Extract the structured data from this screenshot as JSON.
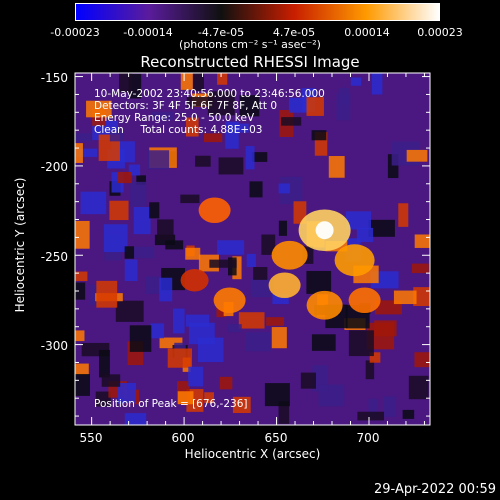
{
  "chart_data": {
    "type": "heatmap",
    "title": "Reconstructed RHESSI Image",
    "xlabel": "Heliocentric X (arcsec)",
    "ylabel": "Heliocentric Y (arcsec)",
    "xlim": [
      541,
      733
    ],
    "ylim": [
      -345,
      -148
    ],
    "x_ticks": [
      "550",
      "600",
      "650",
      "700"
    ],
    "y_ticks": [
      "-150",
      "-200",
      "-250",
      "-300"
    ],
    "colorbar": {
      "ticks": [
        "-0.00023",
        "-0.00014",
        "-4.7e-05",
        "4.7e-05",
        "0.00014",
        "0.00023"
      ],
      "unit_label": "(photons cm⁻² s⁻¹ asec⁻²)",
      "colors": [
        "#0000ff",
        "#5a1c9c",
        "#101010",
        "#c81e00",
        "#ff9a00",
        "#ffffff"
      ]
    },
    "peak": [
      676,
      -236
    ]
  },
  "annotations": {
    "time_range": "10-May-2002 23:40:56.000 to 23:46:56.000",
    "detectors": "Detectors: 3F 4F 5F 6F 7F 8F, Att 0",
    "energy": "Energy Range: 25.0 - 50.0 keV",
    "clean": "Clean     Total counts: 4.88E+03",
    "peak_label": "Position of Peak = [676,-236]"
  },
  "footer": {
    "timestamp": "29-Apr-2022 00:59"
  }
}
